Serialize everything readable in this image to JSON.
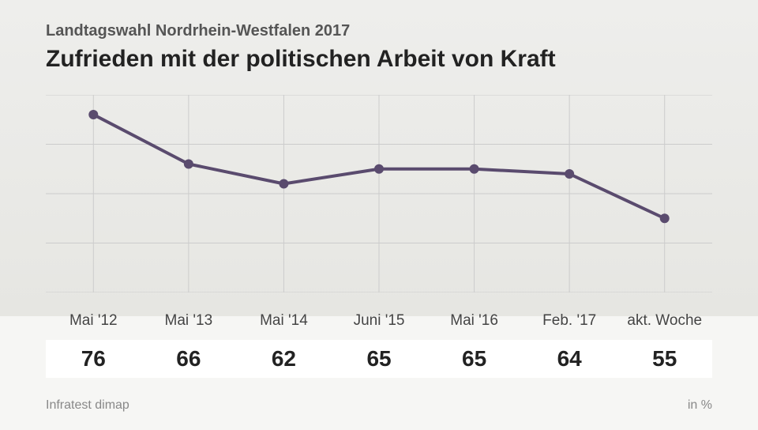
{
  "subtitle": "Landtagswahl Nordrhein-Westfalen 2017",
  "title": "Zufrieden mit der politischen Arbeit von Kraft",
  "source": "Infratest dimap",
  "unit": "in %",
  "chart": {
    "type": "line",
    "categories": [
      "Mai '12",
      "Mai '13",
      "Mai '14",
      "Juni '15",
      "Mai '16",
      "Feb. '17",
      "akt. Woche"
    ],
    "values": [
      76,
      66,
      62,
      65,
      65,
      64,
      55
    ],
    "ylim": [
      40,
      80
    ],
    "line_color": "#5a4b6e",
    "line_width": 4,
    "marker_radius": 6,
    "marker_fill": "#5a4b6e",
    "grid_color": "#cccccc",
    "grid_width": 1,
    "grid_ysteps": [
      40,
      50,
      60,
      70,
      80
    ],
    "label_fontsize": 19,
    "label_color": "#444444",
    "value_fontsize": 28,
    "value_color": "#222222",
    "background_upper": "#eeeeec",
    "background_lower": "#f6f6f4",
    "band_background": "#ffffff"
  }
}
